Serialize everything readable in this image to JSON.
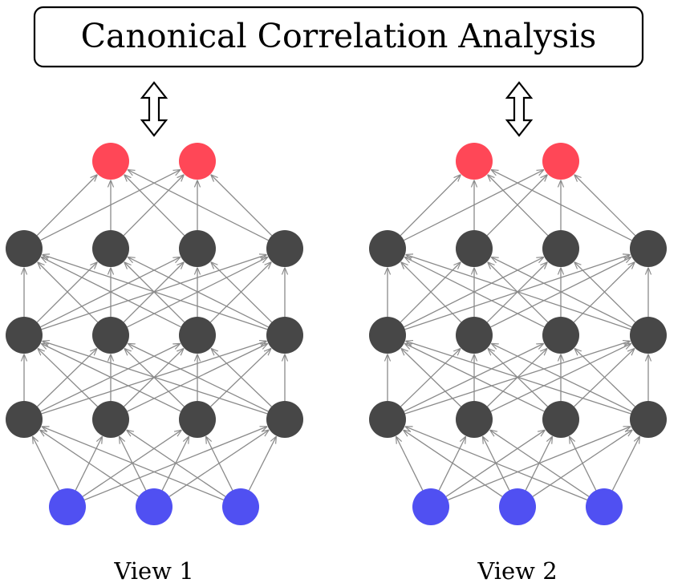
{
  "title": "Canonical Correlation Analysis",
  "views": [
    {
      "label": "View 1"
    },
    {
      "label": "View 2"
    }
  ],
  "network": {
    "layers": [
      {
        "role": "input",
        "nodes": 3
      },
      {
        "role": "hidden",
        "nodes": 4
      },
      {
        "role": "hidden",
        "nodes": 4
      },
      {
        "role": "hidden",
        "nodes": 4
      },
      {
        "role": "output",
        "nodes": 2
      }
    ]
  },
  "colors": {
    "input": "#5050f2",
    "hidden": "#474747",
    "output": "#ff4757",
    "edge": "#8a8a8a",
    "frame": "#000000"
  }
}
